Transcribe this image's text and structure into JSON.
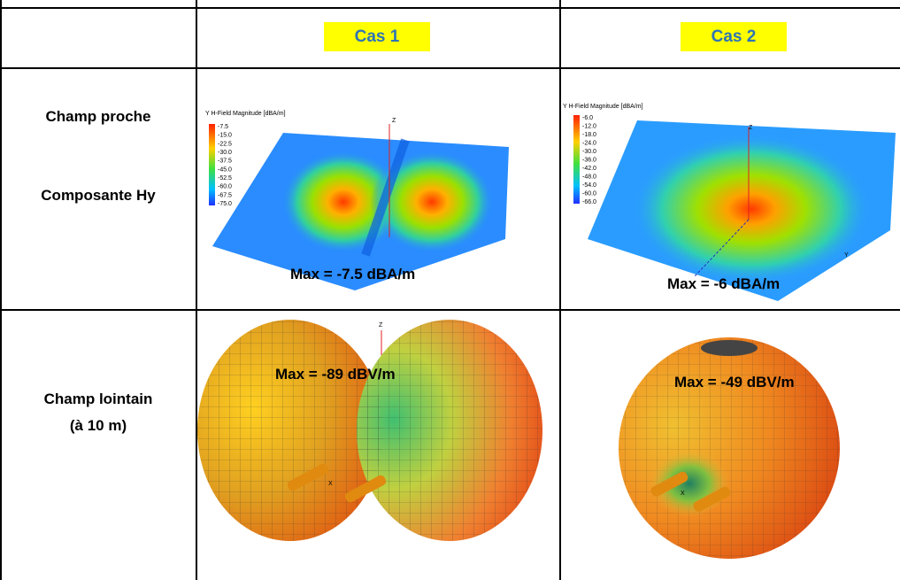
{
  "table": {
    "columns": [
      "Cas 1",
      "Cas 2"
    ],
    "rows": [
      {
        "label": [
          "Champ proche",
          "Composante Hy"
        ],
        "cells": [
          {
            "legend_title": "Y H-Field Magnitude [dBA/m]",
            "scale": [
              "-7.5",
              "-15.0",
              "-22.5",
              "-30.0",
              "-37.5",
              "-45.0",
              "-52.5",
              "-60.0",
              "-67.5",
              "-75.0"
            ],
            "axes": [
              "Z"
            ],
            "max": "Max = -7.5 dBA/m"
          },
          {
            "legend_title": "Y H-Field Magnitude [dBA/m]",
            "scale": [
              "-6.0",
              "-12.0",
              "-18.0",
              "-24.0",
              "-30.0",
              "-36.0",
              "-42.0",
              "-48.0",
              "-54.0",
              "-60.0",
              "-66.0"
            ],
            "axes": [
              "Z",
              "Y"
            ],
            "max": "Max = -6 dBA/m"
          }
        ]
      },
      {
        "label": [
          "Champ lointain",
          "(à 10 m)"
        ],
        "cells": [
          {
            "axes": [
              "Z",
              "X"
            ],
            "max": "Max = -89 dBV/m"
          },
          {
            "axes": [
              "X"
            ],
            "max": "Max = -49 dBV/m"
          }
        ]
      }
    ]
  }
}
